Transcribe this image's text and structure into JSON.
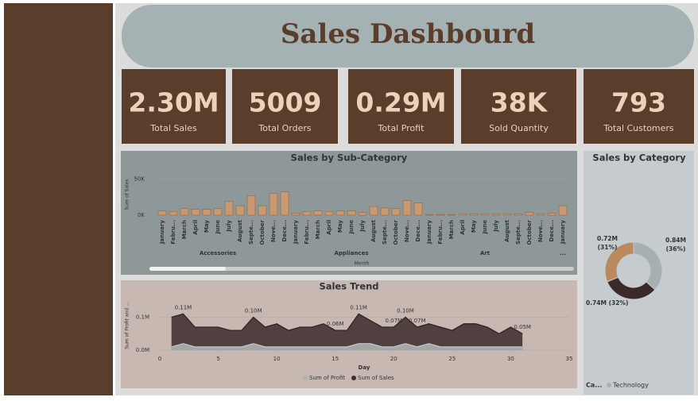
{
  "header": {
    "title": "Sales Dashbourd"
  },
  "kpis": [
    {
      "value": "2.30M",
      "label": "Total Sales"
    },
    {
      "value": "5009",
      "label": "Total Orders"
    },
    {
      "value": "0.29M",
      "label": "Total Profit"
    },
    {
      "value": "38K",
      "label": "Sold Quantity"
    },
    {
      "value": "793",
      "label": "Total Customers"
    }
  ],
  "chart_data": [
    {
      "type": "bar",
      "title": "Sales by Sub-Category",
      "y_label": "Sum of Sales",
      "x_label": "Month",
      "groups": [
        "Accessories",
        "Appliances",
        "Art",
        "..."
      ],
      "categories": [
        "January",
        "Febru...",
        "March",
        "April",
        "May",
        "June",
        "July",
        "August",
        "Septe...",
        "October",
        "Nove...",
        "Dece...",
        "January",
        "Febru...",
        "March",
        "April",
        "May",
        "June",
        "July",
        "August",
        "Septe...",
        "October",
        "Nove...",
        "Dece...",
        "January",
        "Febru...",
        "March",
        "April",
        "May",
        "June",
        "July",
        "August",
        "Septe...",
        "October",
        "Nove...",
        "Dece...",
        "January"
      ],
      "values": [
        6,
        5,
        9,
        8,
        8,
        9,
        19,
        13,
        27,
        13,
        30,
        32,
        3,
        5,
        6,
        5,
        6,
        6,
        4,
        12,
        10,
        9,
        20,
        17,
        1,
        1,
        1,
        2,
        2,
        2,
        2,
        2,
        2,
        4,
        2,
        3,
        13
      ],
      "color": "#c99a72",
      "ylim": [
        0,
        58
      ],
      "yticks": [
        {
          "value": 0,
          "label": "0K"
        },
        {
          "value": 50,
          "label": "50K"
        }
      ]
    },
    {
      "type": "area",
      "title": "Sales Trend",
      "x_label": "Day",
      "y_label": "Sum of Profit and ...",
      "x": [
        1,
        2,
        3,
        4,
        5,
        6,
        7,
        8,
        9,
        10,
        11,
        12,
        13,
        14,
        15,
        16,
        17,
        18,
        19,
        20,
        21,
        22,
        23,
        24,
        25,
        26,
        27,
        28,
        29,
        30,
        31
      ],
      "series": [
        {
          "name": "Sum of Profit",
          "color": "#aeb2b2",
          "values": [
            0.01,
            0.02,
            0.01,
            0.01,
            0.01,
            0.01,
            0.01,
            0.02,
            0.01,
            0.01,
            0.01,
            0.01,
            0.01,
            0.01,
            0.01,
            0.01,
            0.02,
            0.02,
            0.01,
            0.01,
            0.02,
            0.01,
            0.02,
            0.01,
            0.01,
            0.01,
            0.01,
            0.01,
            0.01,
            0.01,
            0.01
          ]
        },
        {
          "name": "Sum of Sales",
          "color": "#3b2b2b",
          "values": [
            0.1,
            0.11,
            0.07,
            0.07,
            0.07,
            0.06,
            0.06,
            0.1,
            0.07,
            0.08,
            0.06,
            0.07,
            0.07,
            0.08,
            0.06,
            0.06,
            0.11,
            0.09,
            0.07,
            0.07,
            0.1,
            0.07,
            0.08,
            0.07,
            0.06,
            0.08,
            0.08,
            0.07,
            0.05,
            0.07,
            0.05
          ],
          "value_labels": [
            null,
            "0.11M",
            null,
            null,
            null,
            null,
            null,
            "0.10M",
            null,
            null,
            null,
            null,
            null,
            null,
            "0.06M",
            null,
            "0.11M",
            null,
            null,
            "0.07M",
            "0.10M",
            "0.07M",
            null,
            null,
            null,
            null,
            null,
            null,
            null,
            null,
            "0.05M"
          ]
        }
      ],
      "xlim": [
        0,
        35
      ],
      "xticks": [
        0,
        5,
        10,
        15,
        20,
        25,
        30,
        35
      ],
      "ylim": [
        0,
        0.13
      ],
      "yticks": [
        {
          "value": 0,
          "label": "0.0M"
        },
        {
          "value": 0.1,
          "label": "0.1M"
        }
      ]
    },
    {
      "type": "pie",
      "title": "Sales by Category",
      "legend_title": "Ca...",
      "categories": [
        "Technology",
        null,
        null
      ],
      "values": [
        0.84,
        0.74,
        0.72
      ],
      "value_labels": [
        "0.84M (36%)",
        "0.74M (32%)",
        "0.72M (31%)"
      ],
      "colors": [
        "#a7b0b0",
        "#3a2a2a",
        "#b98a5e"
      ]
    }
  ]
}
